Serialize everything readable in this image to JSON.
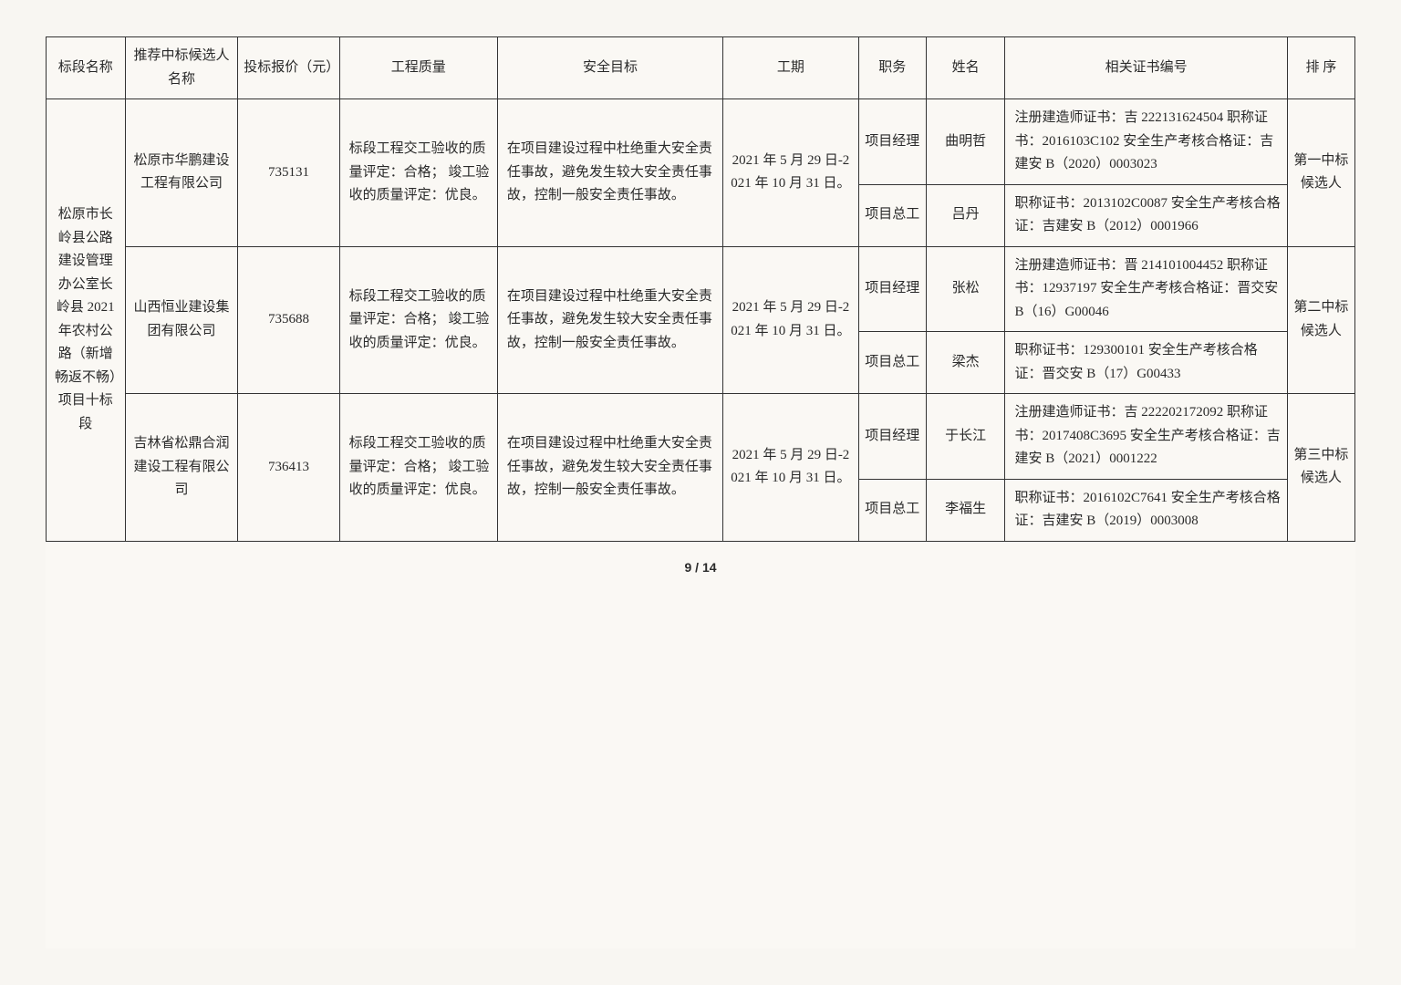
{
  "header": {
    "section_name": "标段名称",
    "candidate_name": "推荐中标候选人名称",
    "bid_price": "投标报价（元）",
    "quality": "工程质量",
    "safety": "安全目标",
    "period": "工期",
    "role": "职务",
    "person": "姓名",
    "cert": "相关证书编号",
    "rank": "排 序"
  },
  "section_name": "松原市长岭县公路建设管理办公室长岭县 2021 年农村公路（新增畅返不畅）项目十标段",
  "candidates": [
    {
      "name": "松原市华鹏建设工程有限公司",
      "price": "735131",
      "quality": "标段工程交工验收的质量评定：合格；\n竣工验收的质量评定：优良。",
      "safety": "在项目建设过程中杜绝重大安全责任事故，避免发生较大安全责任事故，控制一般安全责任事故。",
      "period": "2021 年 5 月 29 日-2021 年 10 月 31 日。",
      "rank": "第一中标候选人",
      "staff": [
        {
          "role": "项目经理",
          "person": "曲明哲",
          "cert": "注册建造师证书：吉 222131624504\n职称证书：2016103C102\n安全生产考核合格证：吉建安 B（2020）0003023"
        },
        {
          "role": "项目总工",
          "person": "吕丹",
          "cert": "职称证书：2013102C0087\n安全生产考核合格证：吉建安 B（2012）0001966"
        }
      ]
    },
    {
      "name": "山西恒业建设集团有限公司",
      "price": "735688",
      "quality": "标段工程交工验收的质量评定：合格；\n竣工验收的质量评定：优良。",
      "safety": "在项目建设过程中杜绝重大安全责任事故，避免发生较大安全责任事故，控制一般安全责任事故。",
      "period": "2021 年 5 月 29 日-2021 年 10 月 31 日。",
      "rank": "第二中标候选人",
      "staff": [
        {
          "role": "项目经理",
          "person": "张松",
          "cert": "注册建造师证书：晋 214101004452\n职称证书：12937197\n安全生产考核合格证：晋交安 B（16）G00046"
        },
        {
          "role": "项目总工",
          "person": "梁杰",
          "cert": "职称证书：129300101\n安全生产考核合格证：晋交安 B（17）G00433"
        }
      ]
    },
    {
      "name": "吉林省松鼎合润建设工程有限公司",
      "price": "736413",
      "quality": "标段工程交工验收的质量评定：合格；\n竣工验收的质量评定：优良。",
      "safety": "在项目建设过程中杜绝重大安全责任事故，避免发生较大安全责任事故，控制一般安全责任事故。",
      "period": "2021 年 5 月 29 日-2021 年 10 月 31 日。",
      "rank": "第三中标候选人",
      "staff": [
        {
          "role": "项目经理",
          "person": "于长江",
          "cert": "注册建造师证书：吉 222202172092\n职称证书：2017408C3695\n安全生产考核合格证：吉建安 B（2021）0001222"
        },
        {
          "role": "项目总工",
          "person": "李福生",
          "cert": "职称证书：2016102C7641\n安全生产考核合格证：吉建安 B（2019）0003008"
        }
      ]
    }
  ],
  "footer": "9 / 14"
}
